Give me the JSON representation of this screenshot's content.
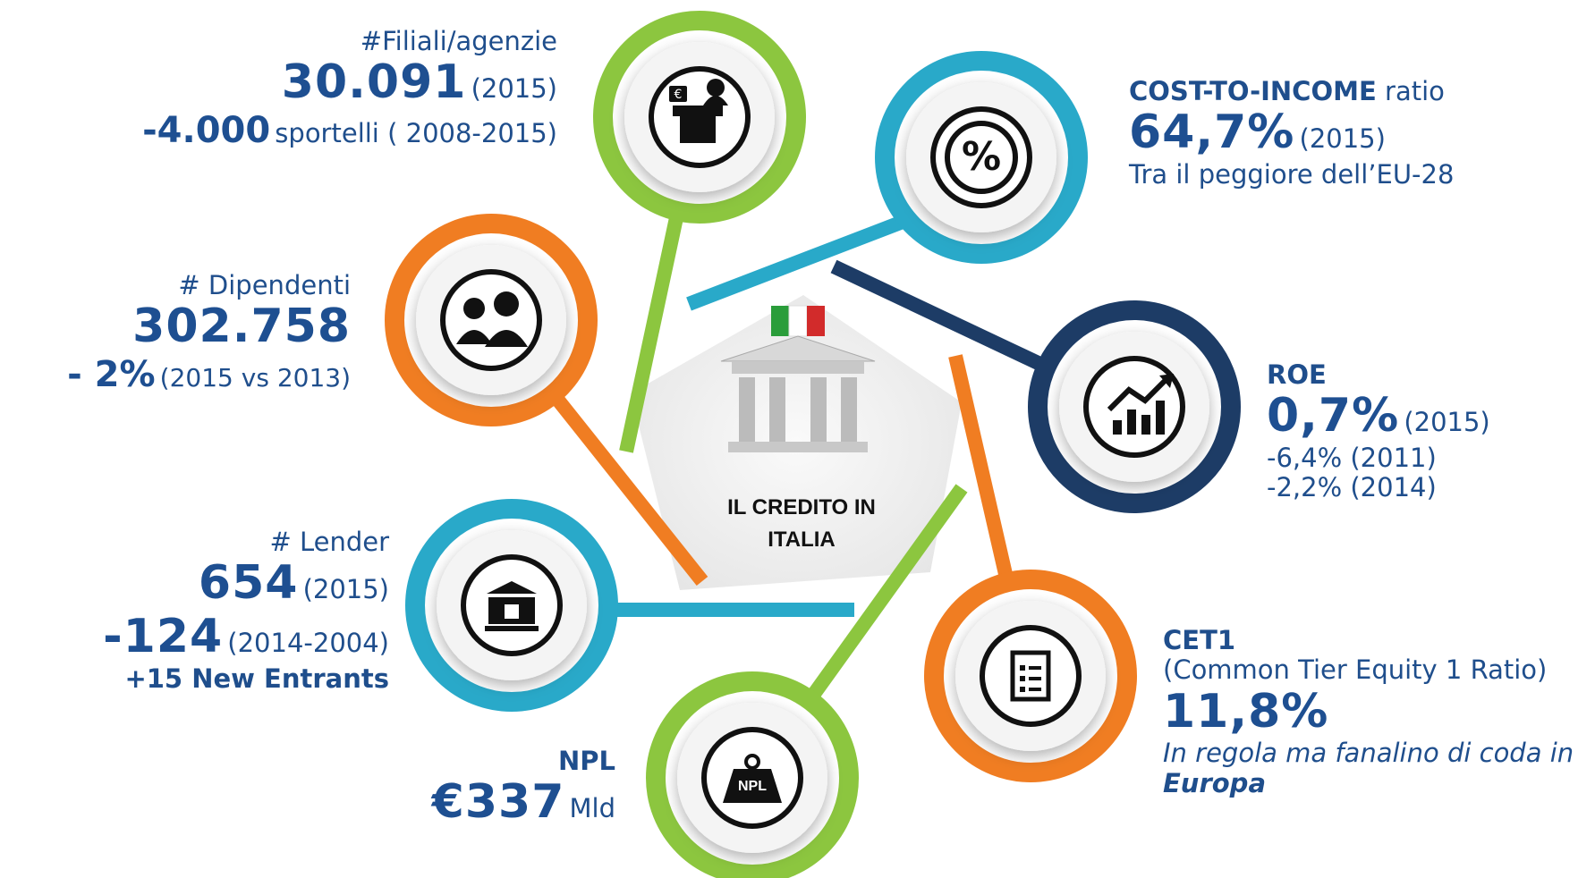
{
  "center": {
    "label": "IL CREDITO IN ITALIA"
  },
  "items": {
    "filiali": {
      "label": "#Filiali/agenzie",
      "value": "30.091",
      "year": "(2015)",
      "change": "-4.000",
      "change_note": "sportelli ( 2008-2015)",
      "icon_text": "€"
    },
    "dipendenti": {
      "label": "# Dipendenti",
      "value": "302.758",
      "change": "- 2%",
      "change_note": "(2015 vs 2013)"
    },
    "lender": {
      "label": "# Lender",
      "value": "654",
      "year": "(2015)",
      "change": "-124",
      "change_note": "(2014-2004)",
      "extra": "+15 New Entrants"
    },
    "npl": {
      "label": "NPL",
      "value": "€337",
      "unit": "Mld",
      "icon_text": "NPL"
    },
    "cost": {
      "label_bold": "COST-TO-INCOME",
      "label_rest": "ratio",
      "value": "64,7%",
      "year": "(2015)",
      "note": "Tra il peggiore dell’EU-28"
    },
    "roe": {
      "label": "ROE",
      "value": "0,7%",
      "year": "(2015)",
      "notes": [
        "-6,4% (2011)",
        "-2,2% (2014)"
      ]
    },
    "cet1": {
      "label": "CET1",
      "sublabel": "(Common Tier Equity 1 Ratio)",
      "value": "11,8%",
      "note_italic": "In regola ma fanalino di coda in",
      "note_bold": "Europa"
    }
  }
}
